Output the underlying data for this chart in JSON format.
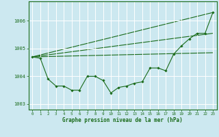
{
  "xlabel": "Graphe pression niveau de la mer (hPa)",
  "background_color": "#cce8f0",
  "grid_color": "#ffffff",
  "line_color": "#1a6b1a",
  "xlim": [
    -0.5,
    23.5
  ],
  "ylim": [
    1002.8,
    1006.7
  ],
  "yticks": [
    1003,
    1004,
    1005,
    1006
  ],
  "xticks": [
    0,
    1,
    2,
    3,
    4,
    5,
    6,
    7,
    8,
    9,
    10,
    11,
    12,
    13,
    14,
    15,
    16,
    17,
    18,
    19,
    20,
    21,
    22,
    23
  ],
  "series1_x": [
    0,
    1,
    2,
    3,
    4,
    5,
    6,
    7,
    8,
    9,
    10,
    11,
    12,
    13,
    14,
    15,
    16,
    17,
    18,
    19,
    20,
    21,
    22,
    23
  ],
  "series1_y": [
    1004.7,
    1004.65,
    1003.9,
    1003.65,
    1003.65,
    1003.5,
    1003.5,
    1004.0,
    1004.0,
    1003.85,
    1003.4,
    1003.6,
    1003.65,
    1003.75,
    1003.8,
    1004.3,
    1004.3,
    1004.2,
    1004.8,
    1005.1,
    1005.35,
    1005.55,
    1005.55,
    1006.3
  ],
  "trend1_x": [
    0,
    23
  ],
  "trend1_y": [
    1004.7,
    1005.55
  ],
  "trend2_x": [
    0,
    23
  ],
  "trend2_y": [
    1004.7,
    1006.3
  ],
  "trend3_x": [
    0,
    23
  ],
  "trend3_y": [
    1004.7,
    1004.85
  ]
}
